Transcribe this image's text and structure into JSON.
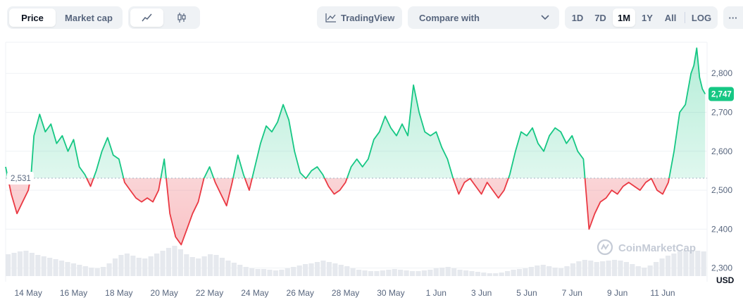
{
  "toolbar": {
    "price_tab": "Price",
    "market_cap_tab": "Market cap",
    "tradingview_label": "TradingView",
    "compare_label": "Compare with",
    "ranges": [
      "1D",
      "7D",
      "1M",
      "1Y",
      "All"
    ],
    "active_range": "1M",
    "log_label": "LOG",
    "more_label": "···"
  },
  "watermark": "CoinMarketCap",
  "colors": {
    "up": "#16c784",
    "down": "#ea3943",
    "up_fill": "#16c784",
    "down_fill": "#ea3943",
    "grid": "#eff2f5",
    "text_muted": "#58667e",
    "baseline_label_bg": "#ffffff"
  },
  "chart_data": {
    "type": "area",
    "currency_label": "USD",
    "baseline": 2531,
    "baseline_label": "2,531",
    "current_value": 2747,
    "current_label": "2,747",
    "ylim": [
      2265,
      2880
    ],
    "yticks": [
      2300,
      2400,
      2500,
      2600,
      2700,
      2800
    ],
    "ytick_labels": [
      "2,300",
      "2,400",
      "2,500",
      "2,600",
      "2,700",
      "2,800"
    ],
    "x_start_date": "2024-05-13",
    "x_end_date": "2024-06-12",
    "xticks": [
      "2024-05-14",
      "2024-05-16",
      "2024-05-18",
      "2024-05-20",
      "2024-05-22",
      "2024-05-24",
      "2024-05-26",
      "2024-05-28",
      "2024-05-30",
      "2024-06-01",
      "2024-06-03",
      "2024-06-05",
      "2024-06-07",
      "2024-06-09",
      "2024-06-11"
    ],
    "xtick_labels": [
      "14 May",
      "16 May",
      "18 May",
      "20 May",
      "22 May",
      "24 May",
      "26 May",
      "28 May",
      "30 May",
      "1 Jun",
      "3 Jun",
      "5 Jun",
      "7 Jun",
      "9 Jun",
      "11 Jun"
    ],
    "price_points": [
      [
        "2024-05-13 00:00",
        2560
      ],
      [
        "2024-05-13 06:00",
        2490
      ],
      [
        "2024-05-13 12:00",
        2440
      ],
      [
        "2024-05-13 18:00",
        2470
      ],
      [
        "2024-05-14 00:00",
        2500
      ],
      [
        "2024-05-14 03:00",
        2540
      ],
      [
        "2024-05-14 06:00",
        2640
      ],
      [
        "2024-05-14 12:00",
        2695
      ],
      [
        "2024-05-14 18:00",
        2650
      ],
      [
        "2024-05-15 00:00",
        2670
      ],
      [
        "2024-05-15 06:00",
        2620
      ],
      [
        "2024-05-15 12:00",
        2640
      ],
      [
        "2024-05-15 18:00",
        2600
      ],
      [
        "2024-05-16 00:00",
        2630
      ],
      [
        "2024-05-16 06:00",
        2560
      ],
      [
        "2024-05-16 12:00",
        2540
      ],
      [
        "2024-05-16 18:00",
        2510
      ],
      [
        "2024-05-17 00:00",
        2550
      ],
      [
        "2024-05-17 06:00",
        2600
      ],
      [
        "2024-05-17 12:00",
        2635
      ],
      [
        "2024-05-17 18:00",
        2590
      ],
      [
        "2024-05-18 00:00",
        2580
      ],
      [
        "2024-05-18 06:00",
        2520
      ],
      [
        "2024-05-18 12:00",
        2500
      ],
      [
        "2024-05-18 18:00",
        2480
      ],
      [
        "2024-05-19 00:00",
        2470
      ],
      [
        "2024-05-19 06:00",
        2480
      ],
      [
        "2024-05-19 12:00",
        2470
      ],
      [
        "2024-05-19 18:00",
        2500
      ],
      [
        "2024-05-20 00:00",
        2580
      ],
      [
        "2024-05-20 06:00",
        2440
      ],
      [
        "2024-05-20 12:00",
        2380
      ],
      [
        "2024-05-20 18:00",
        2360
      ],
      [
        "2024-05-21 00:00",
        2400
      ],
      [
        "2024-05-21 06:00",
        2440
      ],
      [
        "2024-05-21 12:00",
        2470
      ],
      [
        "2024-05-21 18:00",
        2530
      ],
      [
        "2024-05-22 00:00",
        2560
      ],
      [
        "2024-05-22 06:00",
        2520
      ],
      [
        "2024-05-22 12:00",
        2490
      ],
      [
        "2024-05-22 18:00",
        2460
      ],
      [
        "2024-05-23 00:00",
        2520
      ],
      [
        "2024-05-23 06:00",
        2590
      ],
      [
        "2024-05-23 12:00",
        2540
      ],
      [
        "2024-05-23 18:00",
        2500
      ],
      [
        "2024-05-24 00:00",
        2560
      ],
      [
        "2024-05-24 06:00",
        2620
      ],
      [
        "2024-05-24 12:00",
        2665
      ],
      [
        "2024-05-24 18:00",
        2650
      ],
      [
        "2024-05-25 00:00",
        2675
      ],
      [
        "2024-05-25 06:00",
        2720
      ],
      [
        "2024-05-25 12:00",
        2680
      ],
      [
        "2024-05-25 18:00",
        2600
      ],
      [
        "2024-05-26 00:00",
        2545
      ],
      [
        "2024-05-26 06:00",
        2530
      ],
      [
        "2024-05-26 12:00",
        2550
      ],
      [
        "2024-05-26 18:00",
        2560
      ],
      [
        "2024-05-27 00:00",
        2540
      ],
      [
        "2024-05-27 06:00",
        2510
      ],
      [
        "2024-05-27 12:00",
        2490
      ],
      [
        "2024-05-27 18:00",
        2500
      ],
      [
        "2024-05-28 00:00",
        2520
      ],
      [
        "2024-05-28 06:00",
        2560
      ],
      [
        "2024-05-28 12:00",
        2580
      ],
      [
        "2024-05-28 18:00",
        2560
      ],
      [
        "2024-05-29 00:00",
        2580
      ],
      [
        "2024-05-29 06:00",
        2630
      ],
      [
        "2024-05-29 12:00",
        2650
      ],
      [
        "2024-05-29 18:00",
        2690
      ],
      [
        "2024-05-30 00:00",
        2660
      ],
      [
        "2024-05-30 06:00",
        2640
      ],
      [
        "2024-05-30 12:00",
        2670
      ],
      [
        "2024-05-30 18:00",
        2640
      ],
      [
        "2024-05-31 00:00",
        2770
      ],
      [
        "2024-05-31 06:00",
        2700
      ],
      [
        "2024-05-31 12:00",
        2650
      ],
      [
        "2024-05-31 18:00",
        2640
      ],
      [
        "2024-06-01 00:00",
        2650
      ],
      [
        "2024-06-01 06:00",
        2610
      ],
      [
        "2024-06-01 12:00",
        2580
      ],
      [
        "2024-06-01 18:00",
        2530
      ],
      [
        "2024-06-02 00:00",
        2490
      ],
      [
        "2024-06-02 06:00",
        2520
      ],
      [
        "2024-06-02 12:00",
        2530
      ],
      [
        "2024-06-02 18:00",
        2510
      ],
      [
        "2024-06-03 00:00",
        2490
      ],
      [
        "2024-06-03 06:00",
        2520
      ],
      [
        "2024-06-03 12:00",
        2500
      ],
      [
        "2024-06-03 18:00",
        2480
      ],
      [
        "2024-06-04 00:00",
        2500
      ],
      [
        "2024-06-04 06:00",
        2540
      ],
      [
        "2024-06-04 12:00",
        2600
      ],
      [
        "2024-06-04 18:00",
        2650
      ],
      [
        "2024-06-05 00:00",
        2640
      ],
      [
        "2024-06-05 06:00",
        2660
      ],
      [
        "2024-06-05 12:00",
        2620
      ],
      [
        "2024-06-05 18:00",
        2600
      ],
      [
        "2024-06-06 00:00",
        2640
      ],
      [
        "2024-06-06 06:00",
        2660
      ],
      [
        "2024-06-06 12:00",
        2650
      ],
      [
        "2024-06-06 18:00",
        2620
      ],
      [
        "2024-06-07 00:00",
        2640
      ],
      [
        "2024-06-07 06:00",
        2600
      ],
      [
        "2024-06-07 12:00",
        2580
      ],
      [
        "2024-06-07 18:00",
        2400
      ],
      [
        "2024-06-08 00:00",
        2440
      ],
      [
        "2024-06-08 06:00",
        2470
      ],
      [
        "2024-06-08 12:00",
        2480
      ],
      [
        "2024-06-08 18:00",
        2500
      ],
      [
        "2024-06-09 00:00",
        2490
      ],
      [
        "2024-06-09 06:00",
        2510
      ],
      [
        "2024-06-09 12:00",
        2520
      ],
      [
        "2024-06-09 18:00",
        2510
      ],
      [
        "2024-06-10 00:00",
        2500
      ],
      [
        "2024-06-10 06:00",
        2520
      ],
      [
        "2024-06-10 12:00",
        2530
      ],
      [
        "2024-06-10 18:00",
        2500
      ],
      [
        "2024-06-11 00:00",
        2490
      ],
      [
        "2024-06-11 06:00",
        2520
      ],
      [
        "2024-06-11 12:00",
        2600
      ],
      [
        "2024-06-11 18:00",
        2700
      ],
      [
        "2024-06-12 00:00",
        2720
      ],
      [
        "2024-06-12 03:00",
        2760
      ],
      [
        "2024-06-12 06:00",
        2800
      ],
      [
        "2024-06-12 09:00",
        2820
      ],
      [
        "2024-06-12 12:00",
        2865
      ],
      [
        "2024-06-12 15:00",
        2790
      ],
      [
        "2024-06-12 18:00",
        2760
      ],
      [
        "2024-06-12 21:00",
        2747
      ]
    ],
    "volume_levels": [
      0.62,
      0.66,
      0.7,
      0.72,
      0.66,
      0.6,
      0.56,
      0.52,
      0.48,
      0.44,
      0.4,
      0.36,
      0.32,
      0.28,
      0.24,
      0.22,
      0.26,
      0.36,
      0.5,
      0.6,
      0.64,
      0.58,
      0.52,
      0.5,
      0.56,
      0.64,
      0.72,
      0.8,
      0.86,
      0.76,
      0.62,
      0.54,
      0.5,
      0.56,
      0.62,
      0.6,
      0.52,
      0.44,
      0.38,
      0.32,
      0.26,
      0.22,
      0.2,
      0.2,
      0.18,
      0.16,
      0.18,
      0.22,
      0.26,
      0.3,
      0.34,
      0.36,
      0.4,
      0.44,
      0.4,
      0.36,
      0.32,
      0.28,
      0.22,
      0.18,
      0.16,
      0.14,
      0.14,
      0.16,
      0.18,
      0.2,
      0.18,
      0.16,
      0.14,
      0.14,
      0.16,
      0.18,
      0.22,
      0.24,
      0.26,
      0.22,
      0.18,
      0.16,
      0.14,
      0.12,
      0.1,
      0.08,
      0.08,
      0.1,
      0.14,
      0.18,
      0.2,
      0.22,
      0.26,
      0.3,
      0.32,
      0.28,
      0.24,
      0.22,
      0.28,
      0.36,
      0.42,
      0.46,
      0.44,
      0.4,
      0.42,
      0.44,
      0.46,
      0.44,
      0.4,
      0.34,
      0.28,
      0.24,
      0.3,
      0.4,
      0.5,
      0.58,
      0.64,
      0.7,
      0.72,
      0.74,
      0.72,
      0.7
    ]
  }
}
